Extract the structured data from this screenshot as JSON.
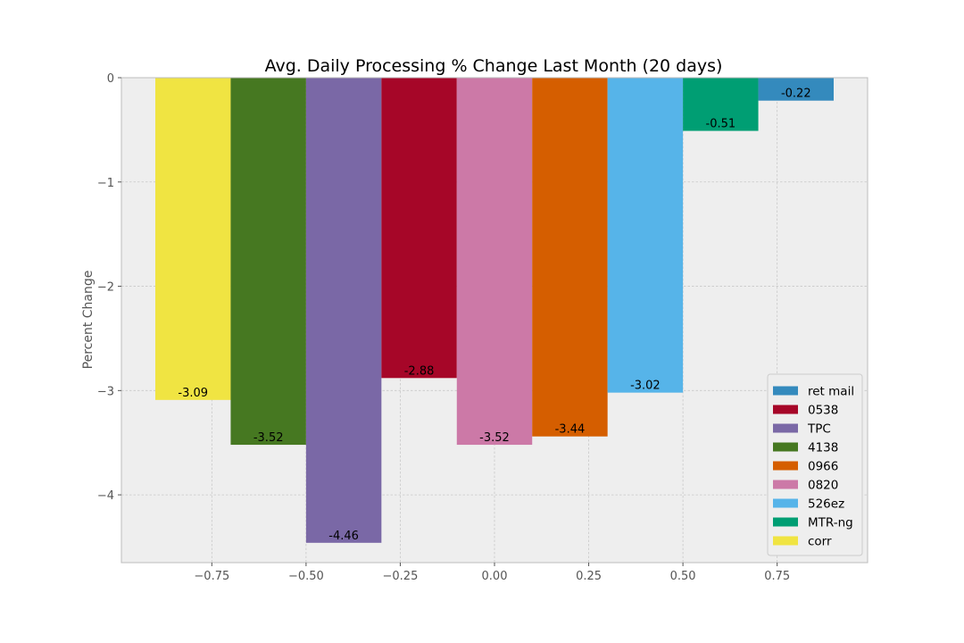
{
  "chart_data": {
    "type": "bar",
    "title": "Avg. Daily Processing % Change Last Month (20 days)",
    "xlabel": "",
    "ylabel": "Percent Change",
    "xlim": [
      -0.99,
      0.99
    ],
    "ylim": [
      -4.65,
      0
    ],
    "xticks": [
      -0.75,
      -0.5,
      -0.25,
      0.0,
      0.25,
      0.5,
      0.75
    ],
    "xtick_labels": [
      "−0.75",
      "−0.50",
      "−0.25",
      "0.00",
      "0.25",
      "0.50",
      "0.75"
    ],
    "yticks": [
      0,
      -1,
      -2,
      -3,
      -4
    ],
    "ytick_labels": [
      "0",
      "−1",
      "−2",
      "−3",
      "−4"
    ],
    "bar_width": 0.2,
    "grid": true,
    "legend_position": "lower-right",
    "series": [
      {
        "name": "corr",
        "x": -0.8,
        "value": -3.09,
        "label": "-3.09",
        "color": "#f0e442"
      },
      {
        "name": "4138",
        "x": -0.6,
        "value": -3.52,
        "label": "-3.52",
        "color": "#467821"
      },
      {
        "name": "TPC",
        "x": -0.4,
        "value": -4.46,
        "label": "-4.46",
        "color": "#7a68a6"
      },
      {
        "name": "0538",
        "x": -0.2,
        "value": -2.88,
        "label": "-2.88",
        "color": "#a60628"
      },
      {
        "name": "0820",
        "x": 0.0,
        "value": -3.52,
        "label": "-3.52",
        "color": "#cc79a7"
      },
      {
        "name": "0966",
        "x": 0.2,
        "value": -3.44,
        "label": "-3.44",
        "color": "#d55e00"
      },
      {
        "name": "526ez",
        "x": 0.4,
        "value": -3.02,
        "label": "-3.02",
        "color": "#56b4e9"
      },
      {
        "name": "MTR-ng",
        "x": 0.6,
        "value": -0.51,
        "label": "-0.51",
        "color": "#009e73"
      },
      {
        "name": "ret mail",
        "x": 0.8,
        "value": -0.22,
        "label": "-0.22",
        "color": "#348abd"
      }
    ],
    "legend_order": [
      "ret mail",
      "0538",
      "TPC",
      "4138",
      "0966",
      "0820",
      "526ez",
      "MTR-ng",
      "corr"
    ]
  }
}
